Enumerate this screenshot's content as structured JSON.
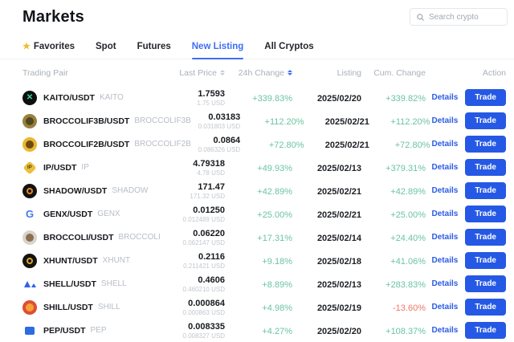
{
  "header": {
    "title": "Markets",
    "search_placeholder": "Search crypto",
    "search_icon": "magnifier"
  },
  "tabs": {
    "active_index": 3,
    "items": [
      {
        "label": "Favorites",
        "icon": "star"
      },
      {
        "label": "Spot",
        "icon": null
      },
      {
        "label": "Futures",
        "icon": null
      },
      {
        "label": "New Listing",
        "icon": null
      },
      {
        "label": "All Cryptos",
        "icon": null
      }
    ]
  },
  "colors": {
    "up": "#6bc4a1",
    "down": "#ee7668",
    "accent_blue": "#2558e5",
    "tab_blue": "#3d6ff2",
    "star_yellow": "#f3ba2f"
  },
  "table": {
    "columns": [
      {
        "label": "Trading Pair",
        "sort": null,
        "align": "left"
      },
      {
        "label": "Last Price",
        "sort": "default",
        "align": "right"
      },
      {
        "label": "24h Change",
        "sort": "active",
        "align": "right"
      },
      {
        "label": "Listing",
        "sort": null,
        "align": "right"
      },
      {
        "label": "Cum. Change",
        "sort": null,
        "align": "right"
      },
      {
        "label": "Action",
        "sort": null,
        "align": "right"
      }
    ],
    "action_labels": {
      "details": "Details",
      "trade": "Trade"
    },
    "rows": [
      {
        "pair": "KAITO/USDT",
        "ticker": "KAITO",
        "price": "1.7593",
        "price_usd": "1.75 USD",
        "change_24h": "+339.83%",
        "listing": "2025/02/20",
        "cum_change": "+339.82%",
        "icon": {
          "name": "kaito-coin-icon",
          "shape": "circle",
          "bg": "#0c100f",
          "glyph": "✕",
          "fg": "#3fd6ae",
          "glyph_size": 10
        }
      },
      {
        "pair": "BROCCOLIF3B/USDT",
        "ticker": "BROCCOLIF3B",
        "price": "0.03183",
        "price_usd": "0.031803 USD",
        "change_24h": "+112.20%",
        "listing": "2025/02/21",
        "cum_change": "+112.20%",
        "icon": {
          "name": "broccolif3b-coin-icon",
          "shape": "circle",
          "bg": "#97823d",
          "inner": "#55461f"
        }
      },
      {
        "pair": "BROCCOLIF2B/USDT",
        "ticker": "BROCCOLIF2B",
        "price": "0.0864",
        "price_usd": "0.086326 USD",
        "change_24h": "+72.80%",
        "listing": "2025/02/21",
        "cum_change": "+72.80%",
        "icon": {
          "name": "broccolif2b-coin-icon",
          "shape": "circle",
          "bg": "#e8b82f",
          "inner": "#6b4a14"
        }
      },
      {
        "pair": "IP/USDT",
        "ticker": "IP",
        "price": "4.79318",
        "price_usd": "4.78 USD",
        "change_24h": "+49.93%",
        "listing": "2025/02/13",
        "cum_change": "+379.31%",
        "icon": {
          "name": "ip-coin-icon",
          "shape": "diamond",
          "bg": "#ecbe3a",
          "glyph": "IP",
          "fg": "#4a3a12"
        }
      },
      {
        "pair": "SHADOW/USDT",
        "ticker": "SHADOW",
        "price": "171.47",
        "price_usd": "171.32 USD",
        "change_24h": "+42.89%",
        "listing": "2025/02/21",
        "cum_change": "+42.89%",
        "icon": {
          "name": "shadow-coin-icon",
          "shape": "circle",
          "bg": "#121212",
          "ring": "#e8872b"
        }
      },
      {
        "pair": "GENX/USDT",
        "ticker": "GENX",
        "price": "0.01250",
        "price_usd": "0.012489 USD",
        "change_24h": "+25.00%",
        "listing": "2025/02/21",
        "cum_change": "+25.00%",
        "icon": {
          "name": "genx-coin-icon",
          "shape": "plain",
          "glyph": "G",
          "fg": "#4479e8",
          "glyph_size": 13
        }
      },
      {
        "pair": "BROCCOLI/USDT",
        "ticker": "BROCCOLI",
        "price": "0.06220",
        "price_usd": "0.062147 USD",
        "change_24h": "+17.31%",
        "listing": "2025/02/14",
        "cum_change": "+24.40%",
        "icon": {
          "name": "broccoli-coin-icon",
          "shape": "circle",
          "bg": "#d9d4cb",
          "inner": "#8a6f52"
        }
      },
      {
        "pair": "XHUNT/USDT",
        "ticker": "XHUNT",
        "price": "0.2116",
        "price_usd": "0.211421 USD",
        "change_24h": "+9.18%",
        "listing": "2025/02/18",
        "cum_change": "+41.06%",
        "icon": {
          "name": "xhunt-coin-icon",
          "shape": "circle",
          "bg": "#151310",
          "ring": "#d9a431"
        }
      },
      {
        "pair": "SHELL/USDT",
        "ticker": "SHELL",
        "price": "0.4606",
        "price_usd": "0.460210 USD",
        "change_24h": "+8.89%",
        "listing": "2025/02/13",
        "cum_change": "+283.83%",
        "icon": {
          "name": "shell-coin-icon",
          "shape": "peaks",
          "fg": "#2f62e9"
        }
      },
      {
        "pair": "SHILL/USDT",
        "ticker": "SHILL",
        "price": "0.000864",
        "price_usd": "0.000863 USD",
        "change_24h": "+4.98%",
        "listing": "2025/02/19",
        "cum_change": "-13.60%",
        "icon": {
          "name": "shill-coin-icon",
          "shape": "circle",
          "bg": "#dd4f31",
          "inner": "#f6a13b"
        }
      },
      {
        "pair": "PEP/USDT",
        "ticker": "PEP",
        "price": "0.008335",
        "price_usd": "0.008327 USD",
        "change_24h": "+4.27%",
        "listing": "2025/02/20",
        "cum_change": "+108.37%",
        "icon": {
          "name": "pep-coin-icon",
          "shape": "square",
          "bg": "#2e6be2"
        }
      }
    ]
  }
}
